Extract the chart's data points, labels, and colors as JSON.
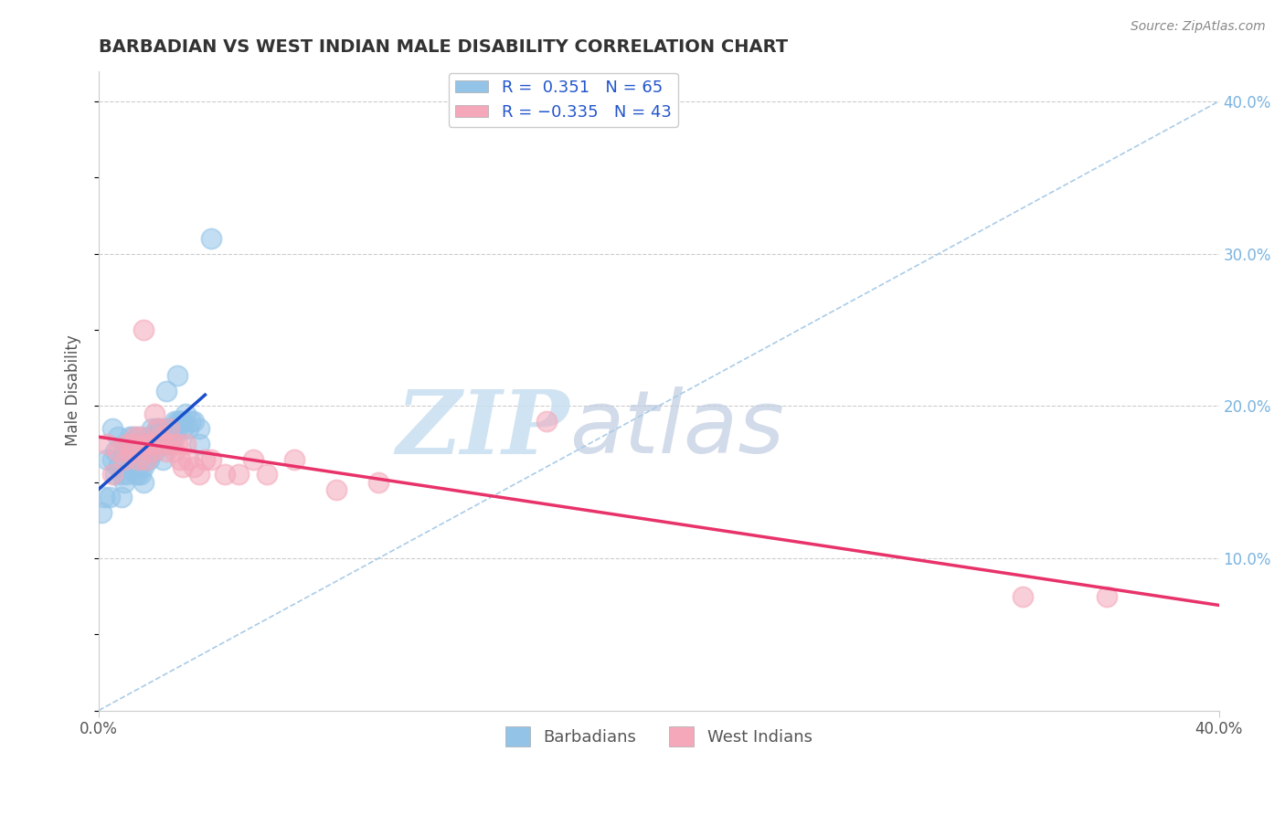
{
  "title": "BARBADIAN VS WEST INDIAN MALE DISABILITY CORRELATION CHART",
  "source": "Source: ZipAtlas.com",
  "ylabel": "Male Disability",
  "xlim": [
    0.0,
    0.4
  ],
  "ylim": [
    0.0,
    0.42
  ],
  "xticks": [
    0.0,
    0.1,
    0.2,
    0.3,
    0.4
  ],
  "yticks": [
    0.0,
    0.1,
    0.2,
    0.3,
    0.4
  ],
  "xticklabels": [
    "0.0%",
    "",
    "",
    "",
    "40.0%"
  ],
  "yticklabels_right": [
    "",
    "10.0%",
    "20.0%",
    "30.0%",
    "40.0%"
  ],
  "blue_R": 0.351,
  "blue_N": 65,
  "pink_R": -0.335,
  "pink_N": 43,
  "blue_color": "#93c4e8",
  "pink_color": "#f4a8ba",
  "blue_line_color": "#1a4fcc",
  "pink_line_color": "#e8326a",
  "ref_line_color": "#aacce8",
  "background_color": "#ffffff",
  "watermark_zip_color": "#c8dff0",
  "watermark_atlas_color": "#c0c8e0",
  "blue_scatter_x": [
    0.001,
    0.002,
    0.003,
    0.004,
    0.005,
    0.005,
    0.006,
    0.006,
    0.007,
    0.007,
    0.008,
    0.008,
    0.009,
    0.009,
    0.01,
    0.01,
    0.011,
    0.011,
    0.012,
    0.012,
    0.013,
    0.013,
    0.014,
    0.014,
    0.015,
    0.015,
    0.016,
    0.016,
    0.017,
    0.017,
    0.018,
    0.018,
    0.019,
    0.019,
    0.02,
    0.02,
    0.021,
    0.021,
    0.022,
    0.022,
    0.023,
    0.023,
    0.024,
    0.024,
    0.025,
    0.025,
    0.026,
    0.026,
    0.027,
    0.027,
    0.028,
    0.028,
    0.029,
    0.029,
    0.03,
    0.03,
    0.031,
    0.032,
    0.033,
    0.034,
    0.036,
    0.036,
    0.04,
    0.024,
    0.028
  ],
  "blue_scatter_y": [
    0.13,
    0.14,
    0.165,
    0.14,
    0.165,
    0.185,
    0.155,
    0.17,
    0.16,
    0.18,
    0.14,
    0.155,
    0.15,
    0.17,
    0.155,
    0.175,
    0.16,
    0.18,
    0.165,
    0.18,
    0.155,
    0.175,
    0.155,
    0.18,
    0.155,
    0.175,
    0.15,
    0.16,
    0.165,
    0.175,
    0.165,
    0.18,
    0.17,
    0.185,
    0.17,
    0.18,
    0.175,
    0.185,
    0.18,
    0.185,
    0.165,
    0.175,
    0.175,
    0.185,
    0.175,
    0.185,
    0.18,
    0.185,
    0.18,
    0.19,
    0.185,
    0.19,
    0.19,
    0.19,
    0.185,
    0.19,
    0.195,
    0.185,
    0.19,
    0.19,
    0.175,
    0.185,
    0.31,
    0.21,
    0.22
  ],
  "pink_scatter_x": [
    0.003,
    0.005,
    0.007,
    0.009,
    0.01,
    0.011,
    0.012,
    0.013,
    0.014,
    0.015,
    0.016,
    0.016,
    0.017,
    0.018,
    0.019,
    0.02,
    0.021,
    0.022,
    0.023,
    0.024,
    0.025,
    0.026,
    0.027,
    0.028,
    0.029,
    0.03,
    0.031,
    0.032,
    0.034,
    0.036,
    0.038,
    0.04,
    0.045,
    0.05,
    0.055,
    0.06,
    0.07,
    0.085,
    0.1,
    0.16,
    0.33,
    0.36,
    0.02
  ],
  "pink_scatter_y": [
    0.175,
    0.155,
    0.17,
    0.165,
    0.175,
    0.17,
    0.175,
    0.18,
    0.165,
    0.18,
    0.175,
    0.25,
    0.165,
    0.175,
    0.17,
    0.175,
    0.185,
    0.18,
    0.175,
    0.17,
    0.185,
    0.175,
    0.17,
    0.175,
    0.165,
    0.16,
    0.175,
    0.165,
    0.16,
    0.155,
    0.165,
    0.165,
    0.155,
    0.155,
    0.165,
    0.155,
    0.165,
    0.145,
    0.15,
    0.19,
    0.075,
    0.075,
    0.195
  ]
}
